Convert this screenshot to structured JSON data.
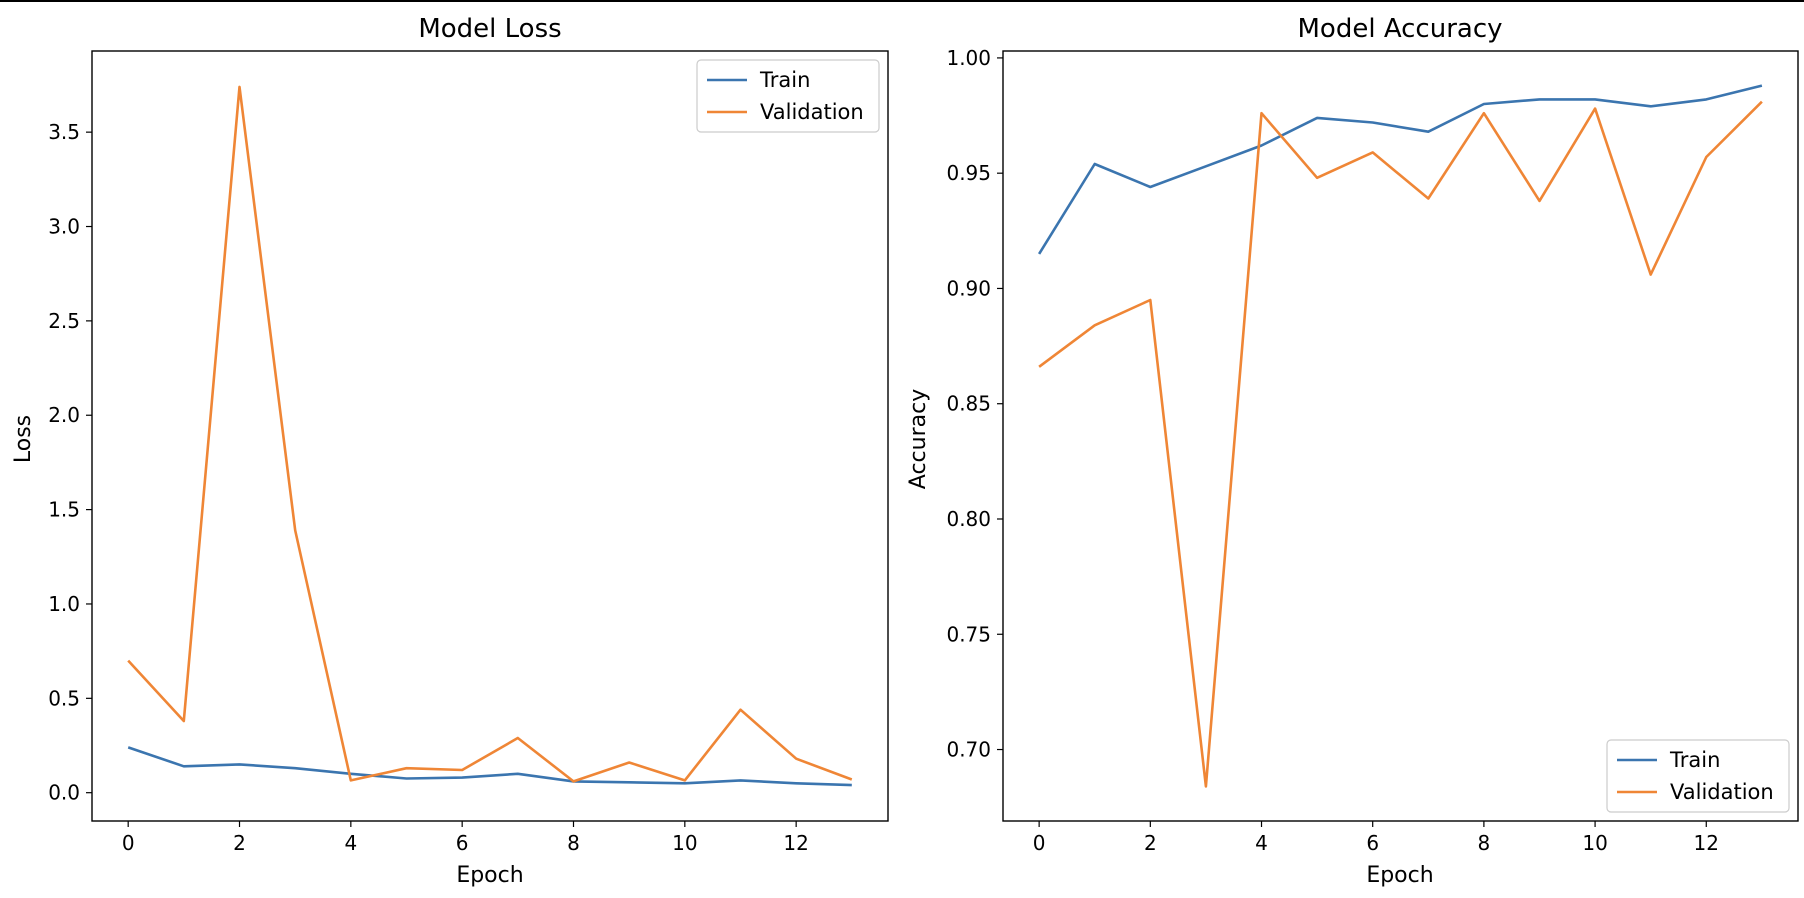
{
  "colors": {
    "train": "#3b75af",
    "validation": "#ef8636",
    "axis": "#000000",
    "legend_border": "#cccccc"
  },
  "chart_data": [
    {
      "type": "line",
      "title": "Model Loss",
      "xlabel": "Epoch",
      "ylabel": "Loss",
      "x": [
        0,
        1,
        2,
        3,
        4,
        5,
        6,
        7,
        8,
        9,
        10,
        11,
        12,
        13
      ],
      "xlim": [
        -0.65,
        13.65
      ],
      "ylim": [
        -0.15,
        3.93
      ],
      "xticks": [
        0,
        2,
        4,
        6,
        8,
        10,
        12
      ],
      "yticks": [
        0.0,
        0.5,
        1.0,
        1.5,
        2.0,
        2.5,
        3.0,
        3.5
      ],
      "ytick_labels": [
        "0.0",
        "0.5",
        "1.0",
        "1.5",
        "2.0",
        "2.5",
        "3.0",
        "3.5"
      ],
      "grid": false,
      "legend": "top-right",
      "series": [
        {
          "name": "Train",
          "values": [
            0.24,
            0.14,
            0.15,
            0.13,
            0.1,
            0.075,
            0.08,
            0.1,
            0.06,
            0.055,
            0.05,
            0.065,
            0.05,
            0.04
          ]
        },
        {
          "name": "Validation",
          "values": [
            0.7,
            0.38,
            3.74,
            1.39,
            0.065,
            0.13,
            0.12,
            0.29,
            0.06,
            0.16,
            0.065,
            0.44,
            0.18,
            0.07
          ]
        }
      ]
    },
    {
      "type": "line",
      "title": "Model Accuracy",
      "xlabel": "Epoch",
      "ylabel": "Accuracy",
      "x": [
        0,
        1,
        2,
        3,
        4,
        5,
        6,
        7,
        8,
        9,
        10,
        11,
        12,
        13
      ],
      "xlim": [
        -0.65,
        13.65
      ],
      "ylim": [
        0.669,
        1.003
      ],
      "xticks": [
        0,
        2,
        4,
        6,
        8,
        10,
        12
      ],
      "yticks": [
        0.7,
        0.75,
        0.8,
        0.85,
        0.9,
        0.95,
        1.0
      ],
      "ytick_labels": [
        "0.70",
        "0.75",
        "0.80",
        "0.85",
        "0.90",
        "0.95",
        "1.00"
      ],
      "grid": false,
      "legend": "bottom-right",
      "series": [
        {
          "name": "Train",
          "values": [
            0.915,
            0.954,
            0.944,
            0.953,
            0.962,
            0.974,
            0.972,
            0.968,
            0.98,
            0.982,
            0.982,
            0.979,
            0.982,
            0.988
          ]
        },
        {
          "name": "Validation",
          "values": [
            0.866,
            0.884,
            0.895,
            0.684,
            0.976,
            0.948,
            0.959,
            0.939,
            0.976,
            0.938,
            0.978,
            0.906,
            0.957,
            0.981
          ]
        }
      ]
    }
  ]
}
